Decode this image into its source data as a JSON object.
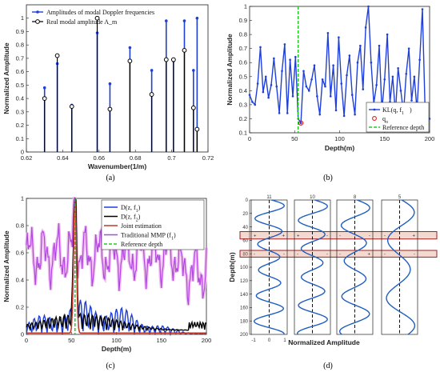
{
  "chart_data": [
    {
      "type": "stem",
      "panel": "(a)",
      "xlabel": "Wavenumber(1/m)",
      "ylabel": "Normalized Amplitude",
      "xlim": [
        0.62,
        0.72
      ],
      "ylim": [
        0,
        1.1
      ],
      "xticks": [
        "0.62",
        "0.64",
        "0.66",
        "0.68",
        "0.7",
        "0.72"
      ],
      "yticks": [
        "0",
        "0.1",
        "0.2",
        "0.3",
        "0.4",
        "0.5",
        "0.6",
        "0.7",
        "0.8",
        "0.9",
        "1"
      ],
      "legend": [
        "Amplitudes of modal Doppler frequencies",
        "Real modal amplitude A_m"
      ],
      "series": [
        {
          "name": "Amplitudes of modal Doppler frequencies",
          "color": "#1f3fd8",
          "x": [
            0.63,
            0.637,
            0.645,
            0.659,
            0.666,
            0.677,
            0.689,
            0.697,
            0.701,
            0.707,
            0.712,
            0.714
          ],
          "y": [
            0.48,
            0.66,
            0.35,
            0.89,
            0.51,
            0.78,
            0.61,
            0.98,
            0.68,
            0.98,
            0.61,
            1.0
          ]
        },
        {
          "name": "Real modal amplitude A_m",
          "color": "#000000",
          "x": [
            0.63,
            0.637,
            0.645,
            0.659,
            0.666,
            0.677,
            0.689,
            0.697,
            0.701,
            0.707,
            0.712,
            0.714
          ],
          "y": [
            0.4,
            0.72,
            0.34,
            1.0,
            0.32,
            0.68,
            0.43,
            0.69,
            0.69,
            0.76,
            0.33,
            0.17
          ]
        }
      ]
    },
    {
      "type": "line",
      "panel": "(b)",
      "xlabel": "Depth(m)",
      "ylabel": "Normalized Amplitude",
      "xlim": [
        0,
        200
      ],
      "ylim": [
        0.1,
        1.0
      ],
      "xticks": [
        "0",
        "50",
        "100",
        "150",
        "200"
      ],
      "yticks": [
        "0.1",
        "0.2",
        "0.3",
        "0.4",
        "0.5",
        "0.6",
        "0.7",
        "0.8",
        "0.9",
        "1"
      ],
      "legend": [
        "KL(q, f_1)",
        "q_o",
        "Reference depth"
      ],
      "reference_depth": 54,
      "q_o": {
        "x": 57,
        "y": 0.17
      },
      "series": [
        {
          "name": "KL(q, f_1)",
          "color": "#1f3fd8",
          "x": [
            0,
            3,
            6,
            9,
            12,
            15,
            18,
            21,
            24,
            27,
            30,
            33,
            36,
            39,
            42,
            45,
            48,
            51,
            54,
            57,
            60,
            63,
            66,
            69,
            72,
            75,
            78,
            81,
            84,
            87,
            90,
            93,
            96,
            99,
            102,
            105,
            108,
            111,
            114,
            117,
            120,
            123,
            126,
            129,
            132,
            135,
            138,
            141,
            144,
            147,
            150,
            153,
            156,
            159,
            162,
            165,
            168,
            171,
            174,
            177,
            180,
            183,
            186,
            189,
            192,
            195,
            198,
            200
          ],
          "y": [
            0.37,
            0.32,
            0.3,
            0.45,
            0.71,
            0.39,
            0.5,
            0.35,
            0.44,
            0.63,
            0.43,
            0.24,
            0.54,
            0.73,
            0.24,
            0.62,
            0.36,
            0.64,
            0.2,
            0.17,
            0.54,
            0.43,
            0.4,
            0.48,
            0.58,
            0.36,
            0.23,
            0.48,
            0.43,
            0.81,
            0.36,
            0.58,
            0.26,
            0.78,
            0.45,
            0.22,
            0.51,
            0.65,
            0.37,
            0.23,
            0.6,
            0.72,
            0.41,
            0.85,
            1.0,
            0.6,
            0.31,
            0.44,
            0.72,
            0.26,
            0.48,
            0.8,
            0.32,
            0.5,
            0.24,
            0.56,
            0.4,
            0.24,
            0.52,
            0.7,
            0.33,
            0.5,
            0.26,
            0.62,
            0.98,
            0.26,
            0.21,
            0.2
          ]
        }
      ]
    },
    {
      "type": "line",
      "panel": "(c)",
      "xlabel": "Depth(m)",
      "ylabel": "Normalized Amplitude",
      "xlim": [
        0,
        200
      ],
      "ylim": [
        0,
        1.0
      ],
      "xticks": [
        "0",
        "50",
        "100",
        "150",
        "200"
      ],
      "yticks": [
        "0",
        "0.2",
        "0.4",
        "0.6",
        "0.8",
        "1"
      ],
      "legend": [
        "D(z, f_1)",
        "D(z, f_2)",
        "Joint estimation",
        "Traditional MMP (f_1)",
        "Reference depth"
      ],
      "reference_depth": 54,
      "series": [
        {
          "name": "D(z, f_1)",
          "color": "#1f3fd8"
        },
        {
          "name": "D(z, f_2)",
          "color": "#000000"
        },
        {
          "name": "Joint estimation",
          "color": "#c0392b"
        },
        {
          "name": "Traditional MMP (f_1)",
          "color": "#b048e0"
        },
        {
          "name": "Reference depth",
          "color": "#33cc33"
        }
      ]
    },
    {
      "type": "line",
      "panel": "(d)",
      "xlabel": "Normalized Amplitude",
      "ylabel": "Depth(m)",
      "ylim": [
        0,
        200
      ],
      "yticks": [
        "0",
        "20",
        "40",
        "60",
        "80",
        "100",
        "120",
        "140",
        "160",
        "180",
        "200"
      ],
      "xticks": [
        "-1",
        "0",
        "1"
      ],
      "mode_labels": [
        "11",
        "10",
        "8",
        "5"
      ],
      "mode_numbers": [
        11,
        10,
        8,
        5
      ],
      "signs_band1": [
        "+",
        "+",
        "+",
        "-",
        "-",
        "-",
        "-",
        "+"
      ],
      "signs_band2": [
        "-",
        "-",
        "-",
        "-",
        "-",
        "+",
        "-",
        "-"
      ],
      "band1_depth": [
        47,
        58
      ],
      "band2_depth": [
        75,
        85
      ],
      "color": "#1f5fbf"
    }
  ]
}
